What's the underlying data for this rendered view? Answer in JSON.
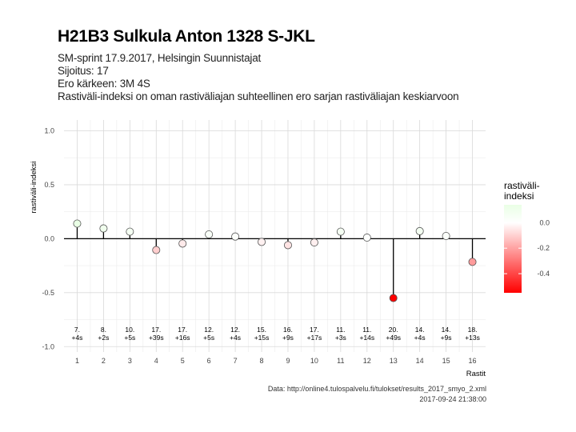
{
  "header": {
    "title": "H21B3 Sulkula Anton 1328 S-JKL",
    "subtitle_lines": [
      "SM-sprint 17.9.2017, Helsingin Suunnistajat",
      "Sijoitus: 17",
      "Ero kärkeen: 3M 4S",
      "Rastiväli-indeksi on oman rastiväliajan suhteellinen ero sarjan rastiväliajan keskiarvoon"
    ]
  },
  "caption": {
    "source": "Data: http://online4.tulospalvelu.fi/tulokset/results_2017_smyo_2.xml",
    "timestamp": "2017-09-24 21:38:00"
  },
  "chart_data": {
    "type": "lollipop",
    "xlabel": "Rastit",
    "ylabel": "rastiväli-indeksi",
    "xlim": [
      0.5,
      16.5
    ],
    "ylim": [
      -1.05,
      1.1
    ],
    "x_ticks": [
      1,
      2,
      3,
      4,
      5,
      6,
      7,
      8,
      9,
      10,
      11,
      12,
      13,
      14,
      15,
      16
    ],
    "y_ticks": [
      1.0,
      0.5,
      0.0,
      -0.5,
      -1.0
    ],
    "y_tick_labels": [
      "1.0",
      "0.5",
      "0.0",
      "-0.5",
      "-1.0"
    ],
    "grid": true,
    "x": [
      1,
      2,
      3,
      4,
      5,
      6,
      7,
      8,
      9,
      10,
      11,
      12,
      13,
      14,
      15,
      16
    ],
    "values": [
      0.14,
      0.095,
      0.065,
      -0.105,
      -0.045,
      0.04,
      0.02,
      -0.03,
      -0.06,
      -0.035,
      0.065,
      0.01,
      -0.55,
      0.07,
      0.025,
      -0.215
    ],
    "annotations": [
      [
        "7.",
        "+4s"
      ],
      [
        "8.",
        "+2s"
      ],
      [
        "10.",
        "+5s"
      ],
      [
        "17.",
        "+39s"
      ],
      [
        "17.",
        "+16s"
      ],
      [
        "12.",
        "+5s"
      ],
      [
        "12.",
        "+4s"
      ],
      [
        "15.",
        "+15s"
      ],
      [
        "16.",
        "+9s"
      ],
      [
        "17.",
        "+17s"
      ],
      [
        "11.",
        "+3s"
      ],
      [
        "11.",
        "+14s"
      ],
      [
        "20.",
        "+49s"
      ],
      [
        "14.",
        "+4s"
      ],
      [
        "14.",
        "+9s"
      ],
      [
        "18.",
        "+13s"
      ]
    ],
    "annotation_y": -0.9,
    "legend": {
      "title": "rastiväli-\nindeksi",
      "title_lines": [
        "rastiväli-",
        "indeksi"
      ],
      "placement": "right",
      "range": [
        -0.55,
        0.14
      ],
      "ticks": [
        0.0,
        -0.2,
        -0.4
      ],
      "tick_labels": [
        "0.0",
        "-0.2",
        "-0.4"
      ],
      "colors": {
        "low": "#ff0000",
        "mid": "#ffffff",
        "high": "#e9ffe5"
      }
    }
  }
}
